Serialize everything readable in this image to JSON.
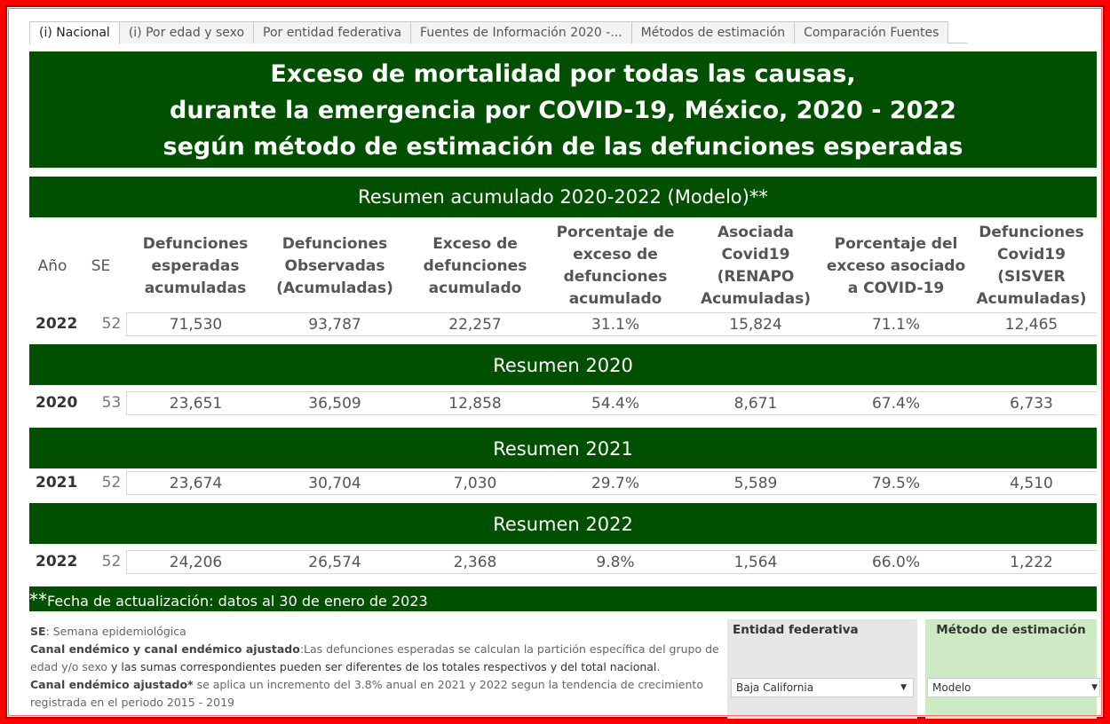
{
  "tabs": [
    "(i) Nacional",
    "(i) Por edad y sexo",
    "Por entidad federativa",
    "Fuentes de Información 2020 -...",
    "Métodos de estimación",
    "Comparación Fuentes"
  ],
  "title": {
    "line1": "Exceso de mortalidad por todas las causas,",
    "line2": "durante la emergencia por COVID-19, México, 2020 - 2022",
    "line3": "según método de estimación de las defunciones esperadas"
  },
  "summary_heading": "Resumen acumulado 2020-2022 (Modelo)**",
  "headers": {
    "year": "Año",
    "se": "SE",
    "expected": "Defunciones\nesperadas\nacumuladas",
    "observed": "Defunciones\nObservadas\n(Acumuladas)",
    "excess": "Exceso de\ndefunciones\nacumulado",
    "pct_excess": "Porcentaje de\nexceso de\ndefunciones\nacumulado",
    "associated": "Asociada\nCovid19\n(RENAPO\nAcumuladas)",
    "pct_assoc": "Porcentaje del\nexceso asociado\na COVID-19",
    "sisver": "Defunciones\nCovid19 (SISVER\nAcumuladas)"
  },
  "rows": {
    "cumulative": {
      "year": "2022",
      "se": "52",
      "expected": "71,530",
      "observed": "93,787",
      "excess": "22,257",
      "pct_excess": "31.1%",
      "associated": "15,824",
      "pct_assoc": "71.1%",
      "sisver": "12,465"
    },
    "y2020": {
      "heading": "Resumen 2020",
      "year": "2020",
      "se": "53",
      "expected": "23,651",
      "observed": "36,509",
      "excess": "12,858",
      "pct_excess": "54.4%",
      "associated": "8,671",
      "pct_assoc": "67.4%",
      "sisver": "6,733"
    },
    "y2021": {
      "heading": "Resumen 2021",
      "year": "2021",
      "se": "52",
      "expected": "23,674",
      "observed": "30,704",
      "excess": "7,030",
      "pct_excess": "29.7%",
      "associated": "5,589",
      "pct_assoc": "79.5%",
      "sisver": "4,510"
    },
    "y2022": {
      "heading": "Resumen 2022",
      "year": "2022",
      "se": "52",
      "expected": "24,206",
      "observed": "26,574",
      "excess": "2,368",
      "pct_excess": "9.8%",
      "associated": "1,564",
      "pct_assoc": "66.0%",
      "sisver": "1,222"
    }
  },
  "update_note": {
    "stars": "**",
    "text": "Fecha de actualización: datos  al 30 de enero de 2023"
  },
  "notes": {
    "se_label": "SE",
    "se_text": ": Semana epidemiológica",
    "canal_label": "Canal endémico y canal endémico ajustado",
    "canal_text_a": ":Las defunciones esperadas se calculan  la partición específica del grupo de edad y/o sexo",
    "canal_text_b": " y las sumas correspondientes pueden ser diferentes de los totales respectivos y del total nacional",
    "canal_text_c": ".",
    "ajust_label": "Canal endémico ajustado*",
    "ajust_text": " se aplica un incremento del 3.8% anual en 2021 y 2022 segun la tendencia de crecimiento registrada en el periodo 2015 - 2019"
  },
  "filters": {
    "entity": {
      "label": "Entidad federativa",
      "value": "Baja California"
    },
    "method": {
      "label": "Método de estimación",
      "value": "Modelo"
    }
  },
  "colors": {
    "dark_green": "#005000",
    "frame_red": "#ff0000",
    "light_green": "#cdeac4",
    "light_gray": "#e6e6e6"
  }
}
